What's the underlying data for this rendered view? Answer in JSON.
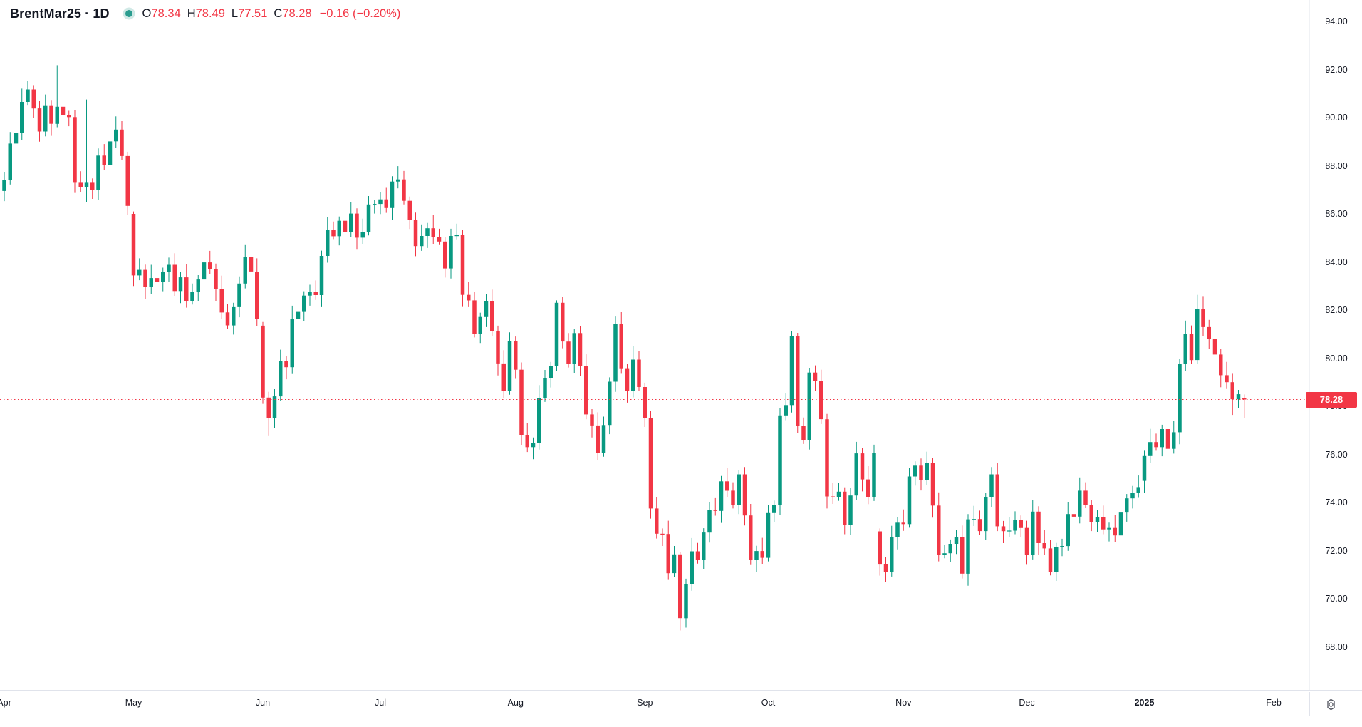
{
  "header": {
    "title": "BrentMar25 · 1D",
    "ohlc": {
      "open_label": "O",
      "open": "78.34",
      "high_label": "H",
      "high": "78.49",
      "low_label": "L",
      "low": "77.51",
      "close_label": "C",
      "close": "78.28",
      "change": "−0.16 (−0.20%)"
    }
  },
  "colors": {
    "up": "#089981",
    "down": "#f23645",
    "text": "#131722",
    "axis_text": "#131722",
    "price_line": "#f23645",
    "tag_bg": "#f23645",
    "tag_text": "#ffffff",
    "status_dot": "#2a9d8f",
    "divider": "#e0e3eb"
  },
  "price_tag": "78.28",
  "chart_data": {
    "type": "candlestick",
    "symbol": "BrentMar25",
    "interval": "1D",
    "title": "BrentMar25 · 1D",
    "last_close": 78.28,
    "price_line": {
      "value": 78.28,
      "style": "dotted"
    },
    "y_axis": {
      "position": "right",
      "grid": false,
      "tick_step": 2,
      "min": 66.6,
      "max": 94.9,
      "ticks": [
        "94.00",
        "92.00",
        "90.00",
        "88.00",
        "86.00",
        "84.00",
        "82.00",
        "80.00",
        "78.00",
        "76.00",
        "74.00",
        "72.00",
        "70.00",
        "68.00"
      ]
    },
    "x_axis_labels": [
      {
        "label": "Apr",
        "index": 0
      },
      {
        "label": "May",
        "index": 22
      },
      {
        "label": "Jun",
        "index": 44
      },
      {
        "label": "Jul",
        "index": 64
      },
      {
        "label": "Aug",
        "index": 87
      },
      {
        "label": "Sep",
        "index": 109
      },
      {
        "label": "Oct",
        "index": 130
      },
      {
        "label": "Nov",
        "index": 153
      },
      {
        "label": "Dec",
        "index": 174
      },
      {
        "label": "2025",
        "index": 194,
        "year": true
      },
      {
        "label": "Feb",
        "index": 216
      }
    ],
    "candles": [
      [
        86.95,
        87.72,
        86.53,
        87.42
      ],
      [
        87.42,
        89.4,
        87.22,
        88.92
      ],
      [
        88.92,
        89.57,
        88.42,
        89.35
      ],
      [
        89.35,
        91.2,
        89.07,
        90.65
      ],
      [
        90.65,
        91.52,
        90.5,
        91.17
      ],
      [
        91.17,
        91.35,
        90.0,
        90.38
      ],
      [
        90.38,
        90.68,
        89.0,
        89.42
      ],
      [
        89.42,
        90.96,
        89.22,
        90.48
      ],
      [
        90.48,
        90.7,
        89.24,
        89.74
      ],
      [
        89.74,
        92.18,
        89.6,
        90.45
      ],
      [
        90.45,
        90.8,
        89.95,
        90.1
      ],
      [
        90.1,
        90.28,
        89.64,
        90.02
      ],
      [
        90.02,
        90.32,
        86.87,
        87.29
      ],
      [
        87.29,
        87.77,
        86.91,
        87.11
      ],
      [
        87.11,
        90.75,
        86.5,
        87.29
      ],
      [
        87.29,
        87.47,
        86.62,
        87.0
      ],
      [
        87.0,
        88.72,
        86.58,
        88.42
      ],
      [
        88.42,
        88.9,
        87.82,
        88.02
      ],
      [
        88.02,
        89.23,
        87.52,
        89.01
      ],
      [
        89.01,
        90.05,
        88.73,
        89.5
      ],
      [
        89.5,
        89.85,
        88.25,
        88.4
      ],
      [
        88.4,
        88.58,
        85.95,
        86.33
      ],
      [
        86.0,
        86.1,
        83.0,
        83.44
      ],
      [
        83.44,
        84.15,
        83.24,
        83.67
      ],
      [
        83.67,
        83.89,
        82.46,
        82.96
      ],
      [
        82.96,
        83.88,
        82.68,
        83.33
      ],
      [
        83.33,
        83.68,
        83.01,
        83.16
      ],
      [
        83.16,
        83.76,
        82.78,
        83.58
      ],
      [
        83.58,
        84.18,
        83.16,
        83.88
      ],
      [
        83.88,
        84.36,
        82.59,
        82.79
      ],
      [
        82.79,
        83.58,
        82.29,
        83.36
      ],
      [
        83.36,
        83.91,
        82.1,
        82.38
      ],
      [
        82.38,
        83.1,
        82.23,
        82.75
      ],
      [
        82.75,
        83.45,
        82.37,
        83.27
      ],
      [
        83.27,
        84.28,
        82.85,
        83.98
      ],
      [
        83.98,
        84.46,
        83.51,
        83.71
      ],
      [
        83.71,
        83.93,
        82.38,
        82.88
      ],
      [
        82.88,
        83.43,
        81.62,
        81.9
      ],
      [
        81.9,
        82.25,
        81.21,
        81.36
      ],
      [
        81.36,
        82.3,
        80.98,
        82.12
      ],
      [
        82.12,
        83.4,
        81.7,
        83.1
      ],
      [
        83.1,
        84.7,
        82.9,
        84.22
      ],
      [
        84.22,
        84.44,
        83.1,
        83.6
      ],
      [
        83.6,
        84.15,
        81.34,
        81.62
      ],
      [
        81.35,
        81.5,
        78.1,
        78.36
      ],
      [
        78.36,
        78.6,
        76.76,
        77.52
      ],
      [
        77.52,
        78.71,
        77.1,
        78.41
      ],
      [
        78.41,
        80.35,
        78.21,
        79.87
      ],
      [
        79.87,
        80.09,
        79.12,
        79.62
      ],
      [
        79.62,
        82.18,
        79.34,
        81.63
      ],
      [
        81.63,
        82.27,
        81.48,
        81.92
      ],
      [
        81.92,
        82.78,
        81.54,
        82.6
      ],
      [
        82.6,
        83.05,
        82.18,
        82.75
      ],
      [
        82.75,
        83.23,
        82.42,
        82.62
      ],
      [
        82.62,
        84.47,
        82.12,
        84.25
      ],
      [
        84.25,
        85.88,
        83.97,
        85.33
      ],
      [
        85.33,
        85.68,
        84.92,
        85.07
      ],
      [
        85.07,
        85.89,
        84.69,
        85.71
      ],
      [
        85.71,
        86.01,
        84.82,
        85.24
      ],
      [
        85.24,
        86.49,
        85.04,
        86.01
      ],
      [
        86.01,
        86.23,
        84.51,
        85.01
      ],
      [
        85.01,
        85.8,
        84.73,
        85.25
      ],
      [
        85.25,
        86.74,
        85.1,
        86.39
      ],
      [
        86.39,
        86.59,
        86.01,
        86.41
      ],
      [
        86.41,
        86.9,
        85.99,
        86.6
      ],
      [
        86.6,
        87.08,
        86.04,
        86.24
      ],
      [
        86.24,
        87.56,
        85.74,
        87.34
      ],
      [
        87.34,
        87.98,
        87.06,
        87.43
      ],
      [
        87.43,
        87.78,
        86.39,
        86.54
      ],
      [
        86.54,
        86.72,
        85.37,
        85.75
      ],
      [
        85.75,
        86.05,
        84.24,
        84.66
      ],
      [
        84.66,
        85.56,
        84.46,
        85.08
      ],
      [
        85.08,
        85.62,
        84.58,
        85.4
      ],
      [
        85.4,
        85.95,
        84.75,
        85.03
      ],
      [
        85.03,
        85.38,
        84.7,
        84.85
      ],
      [
        84.85,
        85.03,
        83.35,
        83.73
      ],
      [
        83.73,
        85.38,
        83.31,
        85.08
      ],
      [
        85.08,
        85.59,
        84.91,
        85.11
      ],
      [
        85.11,
        85.33,
        82.13,
        82.63
      ],
      [
        82.63,
        83.18,
        82.12,
        82.4
      ],
      [
        82.4,
        82.75,
        80.86,
        81.01
      ],
      [
        81.01,
        81.89,
        80.63,
        81.71
      ],
      [
        81.71,
        82.67,
        81.29,
        82.37
      ],
      [
        82.37,
        82.85,
        80.93,
        81.13
      ],
      [
        81.13,
        81.35,
        79.28,
        79.78
      ],
      [
        79.78,
        80.33,
        78.35,
        78.63
      ],
      [
        78.63,
        81.07,
        78.48,
        80.72
      ],
      [
        80.72,
        80.9,
        79.14,
        79.52
      ],
      [
        79.52,
        79.82,
        76.39,
        76.81
      ],
      [
        76.81,
        77.29,
        76.1,
        76.3
      ],
      [
        76.3,
        76.7,
        75.8,
        76.48
      ],
      [
        76.48,
        78.88,
        76.2,
        78.33
      ],
      [
        78.33,
        79.51,
        78.18,
        79.16
      ],
      [
        79.16,
        79.84,
        78.78,
        79.66
      ],
      [
        79.66,
        82.4,
        79.46,
        82.3
      ],
      [
        82.3,
        82.55,
        80.41,
        80.69
      ],
      [
        80.69,
        81.04,
        79.61,
        79.76
      ],
      [
        79.76,
        81.22,
        79.38,
        81.04
      ],
      [
        81.04,
        81.34,
        79.26,
        79.68
      ],
      [
        79.68,
        80.16,
        77.46,
        77.66
      ],
      [
        77.66,
        77.88,
        76.7,
        77.2
      ],
      [
        77.2,
        77.75,
        75.77,
        76.05
      ],
      [
        76.05,
        77.57,
        75.9,
        77.22
      ],
      [
        77.22,
        79.2,
        76.84,
        79.02
      ],
      [
        79.02,
        81.73,
        78.6,
        81.43
      ],
      [
        81.43,
        81.91,
        79.35,
        79.55
      ],
      [
        79.55,
        79.77,
        78.15,
        78.65
      ],
      [
        78.65,
        80.49,
        78.37,
        79.94
      ],
      [
        79.94,
        80.29,
        78.65,
        78.8
      ],
      [
        78.8,
        78.98,
        77.14,
        77.52
      ],
      [
        77.52,
        77.82,
        73.33,
        73.75
      ],
      [
        73.75,
        74.23,
        72.5,
        72.7
      ],
      [
        72.7,
        72.92,
        72.19,
        72.69
      ],
      [
        72.69,
        73.24,
        70.78,
        71.06
      ],
      [
        71.06,
        72.19,
        70.91,
        71.84
      ],
      [
        71.84,
        71.94,
        68.68,
        69.19
      ],
      [
        69.19,
        70.83,
        68.8,
        70.61
      ],
      [
        70.61,
        72.52,
        70.33,
        71.97
      ],
      [
        71.97,
        72.32,
        71.46,
        71.61
      ],
      [
        71.61,
        72.93,
        71.23,
        72.75
      ],
      [
        72.75,
        74.0,
        72.33,
        73.7
      ],
      [
        73.7,
        74.18,
        73.45,
        73.65
      ],
      [
        73.65,
        75.1,
        73.15,
        74.88
      ],
      [
        74.88,
        75.43,
        74.21,
        74.49
      ],
      [
        74.49,
        74.84,
        73.75,
        73.9
      ],
      [
        73.9,
        75.35,
        73.52,
        75.17
      ],
      [
        75.17,
        75.47,
        73.04,
        73.46
      ],
      [
        73.46,
        73.94,
        71.4,
        71.6
      ],
      [
        71.6,
        72.2,
        71.1,
        71.98
      ],
      [
        71.98,
        72.53,
        71.42,
        71.7
      ],
      [
        71.7,
        73.91,
        71.55,
        73.56
      ],
      [
        73.56,
        74.08,
        73.18,
        73.9
      ],
      [
        73.9,
        77.92,
        73.48,
        77.62
      ],
      [
        77.62,
        78.53,
        77.42,
        78.05
      ],
      [
        78.05,
        81.14,
        77.74,
        80.93
      ],
      [
        80.93,
        81.05,
        76.9,
        77.18
      ],
      [
        77.18,
        77.53,
        76.43,
        76.58
      ],
      [
        76.58,
        79.58,
        76.2,
        79.4
      ],
      [
        79.4,
        79.7,
        78.62,
        79.04
      ],
      [
        79.04,
        79.52,
        77.26,
        77.46
      ],
      [
        77.46,
        77.68,
        73.75,
        74.25
      ],
      [
        74.25,
        74.8,
        73.94,
        74.22
      ],
      [
        74.22,
        74.8,
        74.07,
        74.45
      ],
      [
        74.45,
        74.63,
        72.68,
        73.06
      ],
      [
        73.06,
        74.59,
        72.64,
        74.29
      ],
      [
        74.29,
        76.52,
        74.09,
        76.04
      ],
      [
        76.04,
        76.26,
        74.46,
        74.96
      ],
      [
        74.96,
        75.51,
        73.93,
        74.21
      ],
      [
        74.21,
        76.4,
        74.06,
        76.05
      ],
      [
        72.8,
        72.92,
        70.96,
        71.42
      ],
      [
        71.42,
        71.72,
        70.7,
        71.12
      ],
      [
        71.12,
        73.03,
        70.92,
        72.55
      ],
      [
        72.55,
        73.38,
        72.05,
        73.16
      ],
      [
        73.16,
        73.71,
        72.82,
        73.1
      ],
      [
        73.1,
        75.43,
        72.95,
        75.08
      ],
      [
        75.08,
        75.71,
        74.7,
        75.53
      ],
      [
        75.53,
        75.83,
        74.5,
        74.92
      ],
      [
        74.92,
        76.11,
        74.72,
        75.63
      ],
      [
        75.63,
        75.85,
        73.37,
        73.87
      ],
      [
        73.87,
        74.42,
        71.55,
        71.83
      ],
      [
        71.83,
        72.24,
        71.68,
        71.89
      ],
      [
        71.89,
        72.46,
        71.51,
        72.28
      ],
      [
        72.28,
        72.86,
        71.86,
        72.56
      ],
      [
        72.56,
        73.04,
        70.84,
        71.04
      ],
      [
        71.04,
        73.52,
        70.54,
        73.3
      ],
      [
        73.3,
        73.86,
        73.02,
        73.31
      ],
      [
        73.31,
        73.66,
        72.66,
        72.81
      ],
      [
        72.81,
        74.41,
        72.43,
        74.23
      ],
      [
        74.23,
        75.47,
        73.81,
        75.17
      ],
      [
        75.17,
        75.65,
        72.81,
        73.01
      ],
      [
        73.01,
        73.23,
        72.31,
        72.81
      ],
      [
        72.81,
        73.38,
        72.55,
        72.83
      ],
      [
        72.83,
        73.63,
        72.68,
        73.28
      ],
      [
        73.28,
        73.46,
        72.56,
        72.94
      ],
      [
        72.94,
        73.24,
        71.41,
        71.83
      ],
      [
        71.83,
        74.1,
        71.63,
        73.62
      ],
      [
        73.62,
        73.84,
        71.81,
        72.31
      ],
      [
        72.31,
        72.86,
        71.81,
        72.09
      ],
      [
        72.09,
        72.44,
        70.97,
        71.12
      ],
      [
        71.12,
        72.32,
        70.74,
        72.14
      ],
      [
        72.14,
        72.49,
        71.77,
        72.19
      ],
      [
        72.19,
        74.0,
        71.99,
        73.52
      ],
      [
        73.52,
        73.74,
        72.91,
        73.41
      ],
      [
        73.41,
        75.04,
        73.13,
        74.49
      ],
      [
        74.49,
        74.84,
        73.76,
        73.91
      ],
      [
        73.91,
        74.09,
        72.81,
        73.19
      ],
      [
        73.19,
        73.69,
        72.77,
        73.39
      ],
      [
        73.39,
        73.87,
        72.68,
        72.88
      ],
      [
        72.88,
        73.16,
        72.38,
        72.94
      ],
      [
        72.94,
        73.49,
        72.35,
        72.63
      ],
      [
        72.63,
        73.93,
        72.48,
        73.58
      ],
      [
        73.58,
        74.35,
        73.2,
        74.17
      ],
      [
        74.17,
        74.69,
        73.75,
        74.39
      ],
      [
        74.39,
        75.12,
        74.19,
        74.64
      ],
      [
        74.9,
        76.15,
        74.4,
        75.93
      ],
      [
        75.93,
        77.06,
        75.65,
        76.51
      ],
      [
        76.51,
        76.86,
        76.15,
        76.3
      ],
      [
        76.3,
        77.23,
        75.92,
        77.05
      ],
      [
        77.05,
        77.35,
        75.81,
        76.23
      ],
      [
        76.23,
        77.4,
        76.03,
        76.92
      ],
      [
        76.92,
        79.98,
        76.42,
        79.76
      ],
      [
        79.76,
        81.56,
        79.48,
        81.01
      ],
      [
        81.01,
        81.36,
        79.77,
        79.92
      ],
      [
        79.92,
        82.63,
        79.77,
        82.03
      ],
      [
        82.03,
        82.58,
        80.91,
        81.29
      ],
      [
        81.29,
        81.59,
        80.37,
        80.79
      ],
      [
        80.79,
        81.27,
        79.95,
        80.15
      ],
      [
        80.15,
        80.37,
        78.79,
        79.29
      ],
      [
        79.29,
        79.84,
        78.72,
        79.0
      ],
      [
        79.0,
        79.35,
        77.64,
        78.29
      ],
      [
        78.29,
        78.68,
        77.91,
        78.5
      ],
      [
        78.34,
        78.49,
        77.51,
        78.28
      ]
    ]
  },
  "bottom_bar": {
    "gear_icon": "settings"
  }
}
